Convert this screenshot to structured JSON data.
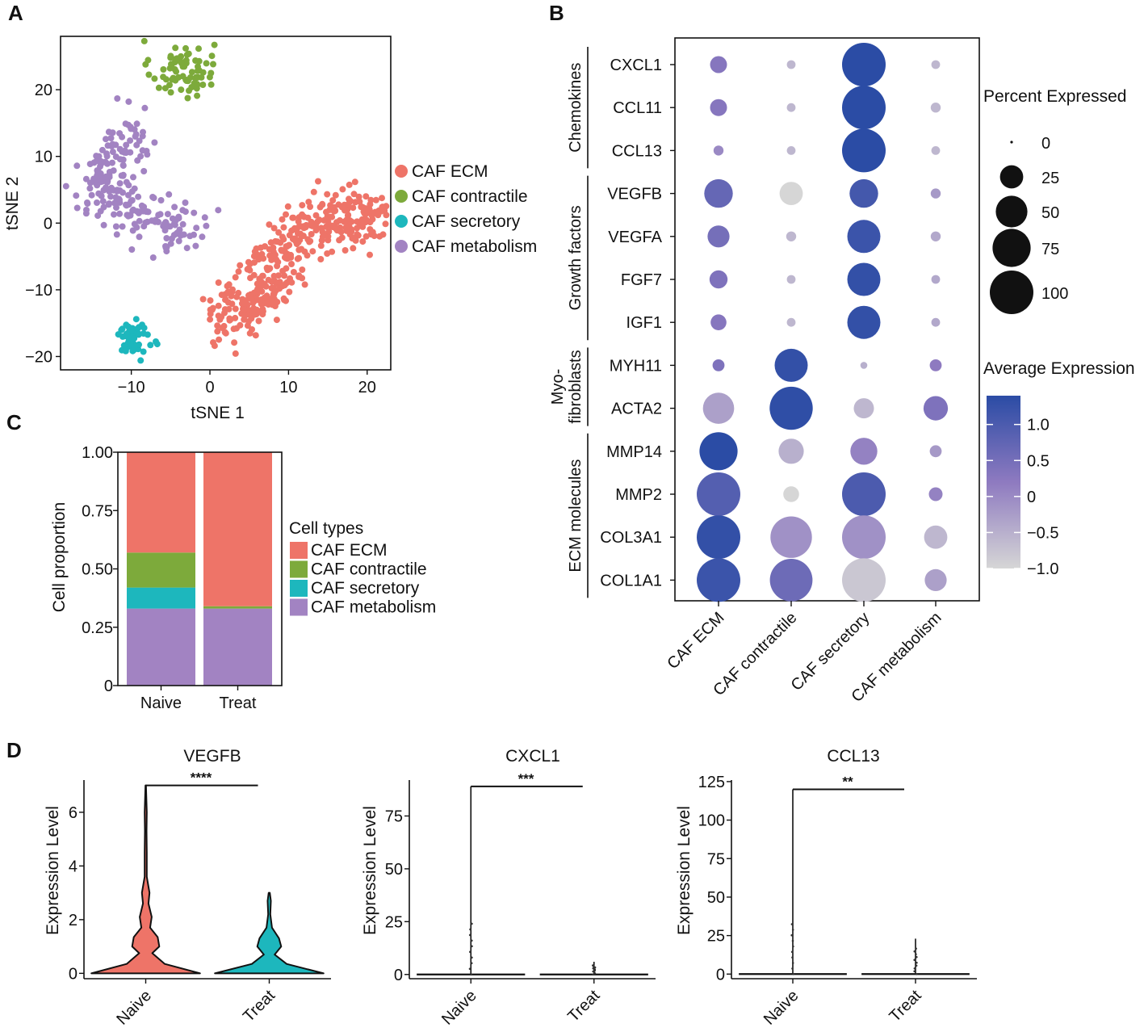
{
  "panel_labels": {
    "a": "A",
    "b": "B",
    "c": "C",
    "d": "D"
  },
  "colors": {
    "caf_ecm": "#EE7468",
    "caf_contractile": "#7DAA3B",
    "caf_secretory": "#1DB7BD",
    "caf_metabolism": "#A283C2",
    "grad_high": "#2B4CA5",
    "grad_mid": "#8E7AC0",
    "grad_low": "#D6D6D6"
  },
  "chart_data": [
    {
      "panel": "A",
      "type": "scatter",
      "xlabel": "tSNE 1",
      "ylabel": "tSNE 2",
      "xlim": [
        -19,
        23
      ],
      "ylim": [
        -22,
        28
      ],
      "xticks": [
        -10,
        0,
        10,
        20
      ],
      "yticks": [
        -20,
        -10,
        0,
        10,
        20
      ],
      "x_tick_labels": [
        "−10",
        "0",
        "10",
        "20"
      ],
      "y_tick_labels": [
        "−20",
        "−10",
        "0",
        "10",
        "20"
      ],
      "legend": [
        "CAF ECM",
        "CAF contractile",
        "CAF secretory",
        "CAF metabolism"
      ],
      "clusters": [
        {
          "name": "CAF contractile",
          "note": "approximate cluster extent in data units",
          "cx": -3.5,
          "cy": 23,
          "sx": 2.0,
          "sy": 2.2,
          "n": 75
        },
        {
          "name": "CAF metabolism",
          "note": "approximate cluster extent in data units",
          "path": [
            [
              -9,
              14
            ],
            [
              -12,
              9
            ],
            [
              -15,
              4
            ],
            [
              -10,
              2
            ],
            [
              -5,
              0
            ],
            [
              -2,
              -2
            ]
          ],
          "n": 230
        },
        {
          "name": "CAF secretory",
          "note": "approximate cluster extent in data units",
          "cx": -9.5,
          "cy": -17,
          "sx": 1.0,
          "sy": 1.4,
          "n": 55
        },
        {
          "name": "CAF ECM",
          "note": "approximate cluster extent in data units",
          "path": [
            [
              2,
              -15
            ],
            [
              6,
              -11
            ],
            [
              9,
              -6
            ],
            [
              13,
              0
            ],
            [
              18,
              1
            ],
            [
              21,
              1
            ]
          ],
          "n": 420
        }
      ]
    },
    {
      "panel": "B",
      "type": "dot",
      "genes": [
        "CXCL1",
        "CCL11",
        "CCL13",
        "VEGFB",
        "VEGFA",
        "FGF7",
        "IGF1",
        "MYH11",
        "ACTA2",
        "MMP14",
        "MMP2",
        "COL3A1",
        "COL1A1"
      ],
      "groups": [
        {
          "label": "Chemokines",
          "genes": [
            "CXCL1",
            "CCL11",
            "CCL13"
          ]
        },
        {
          "label": "Growth factors",
          "genes": [
            "VEGFB",
            "VEGFA",
            "FGF7",
            "IGF1"
          ]
        },
        {
          "label": "Myo-",
          "label2": "fibroblasts",
          "genes": [
            "MYH11",
            "ACTA2"
          ]
        },
        {
          "label": "ECM molecules",
          "genes": [
            "MMP14",
            "MMP2",
            "COL3A1",
            "COL1A1"
          ]
        }
      ],
      "cell_types": [
        "CAF ECM",
        "CAF contractile",
        "CAF secretory",
        "CAF metabolism"
      ],
      "percent_expressed": [
        [
          12,
          2,
          100,
          2
        ],
        [
          12,
          2,
          100,
          3
        ],
        [
          3,
          2,
          100,
          2
        ],
        [
          40,
          25,
          40,
          3
        ],
        [
          22,
          3,
          55,
          3
        ],
        [
          14,
          2,
          55,
          2
        ],
        [
          10,
          2,
          55,
          2
        ],
        [
          5,
          55,
          1,
          5
        ],
        [
          48,
          98,
          18,
          28
        ],
        [
          75,
          30,
          35,
          5
        ],
        [
          100,
          10,
          100,
          7
        ],
        [
          100,
          90,
          100,
          25
        ],
        [
          100,
          95,
          100,
          22
        ]
      ],
      "average_expression": [
        [
          0.3,
          -0.6,
          1.4,
          -0.6
        ],
        [
          0.3,
          -0.6,
          1.4,
          -0.6
        ],
        [
          0.0,
          -0.6,
          1.4,
          -0.6
        ],
        [
          0.7,
          -1.0,
          1.1,
          -0.2
        ],
        [
          0.5,
          -0.6,
          1.2,
          -0.4
        ],
        [
          0.4,
          -0.6,
          1.3,
          -0.4
        ],
        [
          0.3,
          -0.6,
          1.3,
          -0.4
        ],
        [
          0.4,
          1.3,
          -0.5,
          0.2
        ],
        [
          -0.3,
          1.35,
          -0.6,
          0.4
        ],
        [
          1.4,
          -0.5,
          0.1,
          -0.2
        ],
        [
          0.9,
          -1.0,
          1.0,
          0.1
        ],
        [
          1.3,
          -0.1,
          -0.1,
          -0.6
        ],
        [
          1.2,
          0.6,
          -0.8,
          -0.3
        ]
      ],
      "size_legend_title": "Percent Expressed",
      "size_legend": [
        0,
        25,
        50,
        75,
        100
      ],
      "size_legend_labels": [
        "0",
        "25",
        "50",
        "75",
        "100"
      ],
      "color_legend_title": "Average Expression",
      "color_range": [
        -1.0,
        1.4
      ],
      "color_ticks": [
        1.0,
        0.5,
        0,
        -0.5,
        -1.0
      ],
      "color_tick_labels": [
        "1.0",
        "0.5",
        "0",
        "−0.5",
        "−1.0"
      ]
    },
    {
      "panel": "C",
      "type": "bar",
      "stacked": true,
      "categories": [
        "Naive",
        "Treat"
      ],
      "ylabel": "Cell proportion",
      "ylim": [
        0,
        1
      ],
      "yticks": [
        0,
        0.25,
        0.5,
        0.75,
        1.0
      ],
      "y_tick_labels": [
        "0",
        "0.25",
        "0.50",
        "0.75",
        "1.00"
      ],
      "legend_title": "Cell types",
      "series": [
        {
          "name": "CAF metabolism",
          "values": [
            0.33,
            0.33
          ]
        },
        {
          "name": "CAF secretory",
          "values": [
            0.09,
            0.0
          ]
        },
        {
          "name": "CAF contractile",
          "values": [
            0.15,
            0.01
          ]
        },
        {
          "name": "CAF ECM",
          "values": [
            0.43,
            0.66
          ]
        }
      ],
      "legend_order": [
        "CAF ECM",
        "CAF contractile",
        "CAF secretory",
        "CAF metabolism"
      ]
    },
    {
      "panel": "D",
      "type": "violin",
      "title": "VEGFB",
      "categories": [
        "Naive",
        "Treat"
      ],
      "ylabel": "Expression Level",
      "ylim": [
        -0.2,
        7.2
      ],
      "yticks": [
        0,
        2,
        4,
        6
      ],
      "y_tick_labels": [
        "0",
        "2",
        "4",
        "6"
      ],
      "significance": "****",
      "bracket_y": 7.0,
      "max_values": [
        7.0,
        3.0
      ],
      "fill": [
        "CAF ECM",
        "CAF secretory"
      ]
    },
    {
      "panel": "D",
      "type": "violin",
      "title": "CXCL1",
      "categories": [
        "Naive",
        "Treat"
      ],
      "ylabel": "Expression Level",
      "ylim": [
        -2,
        92
      ],
      "yticks": [
        0,
        25,
        50,
        75
      ],
      "y_tick_labels": [
        "0",
        "25",
        "50",
        "75"
      ],
      "significance": "***",
      "bracket_y": 89,
      "max_values": [
        89,
        6
      ]
    },
    {
      "panel": "D",
      "type": "violin",
      "title": "CCL13",
      "categories": [
        "Naive",
        "Treat"
      ],
      "ylabel": "Expression Level",
      "ylim": [
        -3,
        126
      ],
      "yticks": [
        0,
        25,
        50,
        75,
        100,
        125
      ],
      "y_tick_labels": [
        "0",
        "25",
        "50",
        "75",
        "100",
        "125"
      ],
      "significance": "**",
      "bracket_y": 120,
      "max_values": [
        120,
        23
      ]
    }
  ]
}
